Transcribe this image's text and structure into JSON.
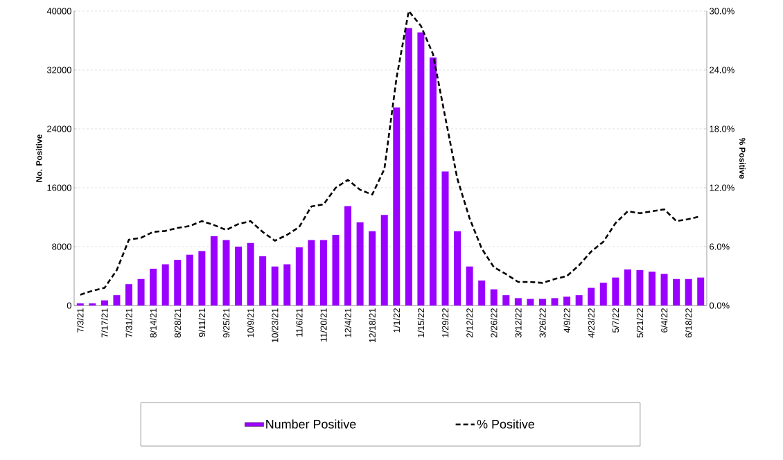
{
  "chart_data": {
    "type": "bar",
    "categories": [
      "7/3/21",
      null,
      "7/17/21",
      null,
      "7/31/21",
      null,
      "8/14/21",
      null,
      "8/28/21",
      null,
      "9/11/21",
      null,
      "9/25/21",
      null,
      "10/9/21",
      null,
      "10/23/21",
      null,
      "11/6/21",
      null,
      "11/20/21",
      null,
      "12/4/21",
      null,
      "12/18/21",
      null,
      "1/1/22",
      null,
      "1/15/22",
      null,
      "1/29/22",
      null,
      "2/12/22",
      null,
      "2/26/22",
      null,
      "3/12/22",
      null,
      "3/26/22",
      null,
      "4/9/22",
      null,
      "4/23/22",
      null,
      "5/7/22",
      null,
      "5/21/22",
      null,
      "6/4/22",
      null,
      "6/18/22",
      null
    ],
    "series": [
      {
        "name": "Number Positive",
        "color": "#9900ff",
        "values": [
          300,
          300,
          700,
          1400,
          2900,
          3600,
          5000,
          5600,
          6200,
          6900,
          7400,
          9400,
          8900,
          8000,
          8500,
          6700,
          5300,
          5600,
          7900,
          8900,
          8900,
          9600,
          13500,
          11300,
          10100,
          12300,
          26900,
          37700,
          37100,
          33700,
          18200,
          10100,
          5300,
          3400,
          2200,
          1400,
          1000,
          900,
          900,
          1000,
          1200,
          1400,
          2400,
          3100,
          3800,
          4900,
          4800,
          4600,
          4300,
          3600,
          3600,
          3800
        ]
      },
      {
        "name": "% Positive",
        "type": "line",
        "axis": "y2",
        "color": "#000000",
        "line_style": "dashed",
        "values": [
          1.1,
          1.5,
          1.8,
          3.6,
          6.7,
          6.9,
          7.5,
          7.6,
          7.9,
          8.1,
          8.6,
          8.2,
          7.7,
          8.3,
          8.6,
          7.5,
          6.6,
          7.2,
          8.0,
          10.1,
          10.3,
          12.0,
          12.8,
          11.8,
          11.3,
          13.9,
          23.2,
          30.0,
          28.5,
          25.6,
          19.2,
          12.9,
          8.9,
          5.8,
          3.9,
          3.2,
          2.4,
          2.4,
          2.3,
          2.7,
          3.0,
          4.1,
          5.5,
          6.5,
          8.4,
          9.6,
          9.4,
          9.6,
          9.8,
          8.6,
          8.8,
          9.1
        ]
      }
    ],
    "ylabel": "No. Positive",
    "y2label": "% Positive",
    "ylim": [
      0,
      40000
    ],
    "yticks": [
      0,
      8000,
      16000,
      24000,
      32000,
      40000
    ],
    "y2lim": [
      0,
      30
    ],
    "y2ticks": [
      {
        "value": 0,
        "label": "0.0%"
      },
      {
        "value": 6,
        "label": "6.0%"
      },
      {
        "value": 12,
        "label": "12.0%"
      },
      {
        "value": 18,
        "label": "18.0%"
      },
      {
        "value": 24,
        "label": "24.0%"
      },
      {
        "value": 30,
        "label": "30.0%"
      }
    ],
    "grid": "y",
    "legend": "bottom"
  }
}
